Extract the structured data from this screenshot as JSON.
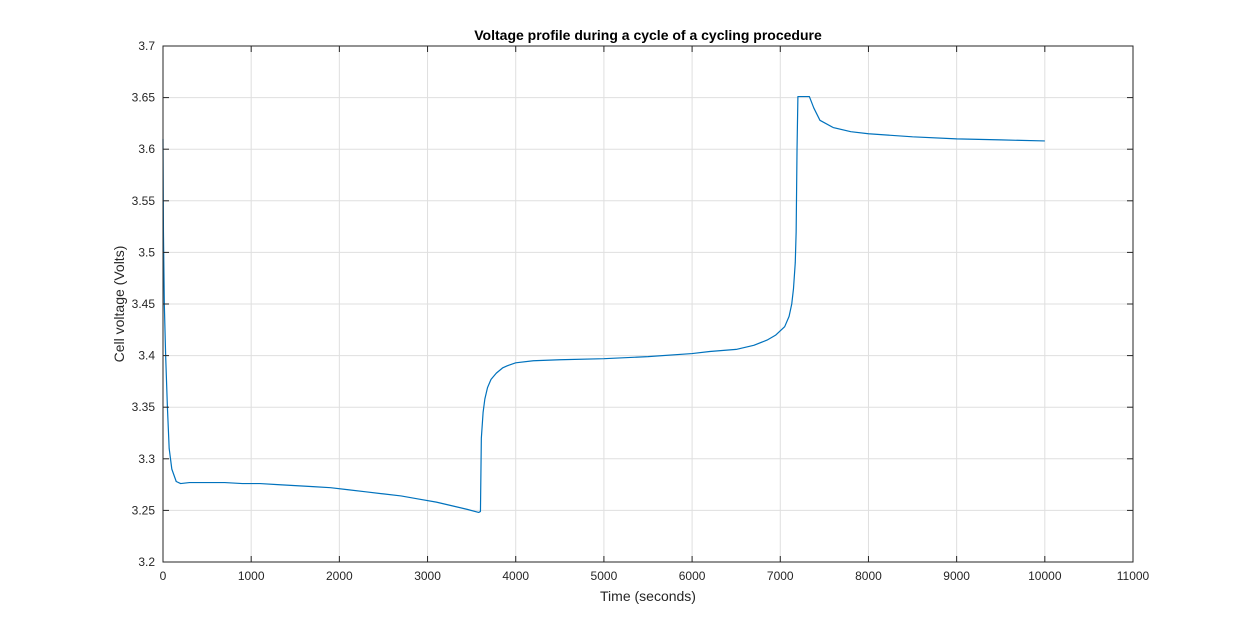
{
  "chart_data": {
    "type": "line",
    "title": "Voltage profile during a cycle of a cycling procedure",
    "xlabel": "Time (seconds)",
    "ylabel": "Cell voltage (Volts)",
    "xlim": [
      0,
      11000
    ],
    "ylim": [
      3.2,
      3.7
    ],
    "xticks": [
      0,
      1000,
      2000,
      3000,
      4000,
      5000,
      6000,
      7000,
      8000,
      9000,
      10000,
      11000
    ],
    "xtick_labels": [
      "0",
      "1000",
      "2000",
      "3000",
      "4000",
      "5000",
      "6000",
      "7000",
      "8000",
      "9000",
      "10000",
      "11000"
    ],
    "yticks": [
      3.2,
      3.25,
      3.3,
      3.35,
      3.4,
      3.45,
      3.5,
      3.55,
      3.6,
      3.65,
      3.7
    ],
    "ytick_labels": [
      "3.2",
      "3.25",
      "3.3",
      "3.35",
      "3.4",
      "3.45",
      "3.5",
      "3.55",
      "3.6",
      "3.65",
      "3.7"
    ],
    "grid": true,
    "colors": {
      "line": "#0072BD",
      "grid": "#dfdfdf",
      "axes": "#262626"
    },
    "series": [
      {
        "x": [
          0,
          5,
          15,
          30,
          50,
          70,
          100,
          150,
          200,
          300,
          500,
          700,
          900,
          1100,
          1300,
          1500,
          1700,
          1900,
          2100,
          2300,
          2500,
          2700,
          2900,
          3100,
          3300,
          3450,
          3580,
          3600,
          3610,
          3630,
          3650,
          3680,
          3720,
          3780,
          3850,
          3900,
          4000,
          4200,
          4500,
          5000,
          5500,
          6000,
          6200,
          6500,
          6700,
          6850,
          6950,
          7050,
          7100,
          7130,
          7150,
          7170,
          7180,
          7185,
          7190,
          7200,
          7300,
          7330,
          7380,
          7450,
          7600,
          7800,
          8000,
          8500,
          9000,
          9500,
          10000
        ],
        "y": [
          3.61,
          3.52,
          3.45,
          3.4,
          3.35,
          3.31,
          3.29,
          3.278,
          3.276,
          3.277,
          3.277,
          3.277,
          3.276,
          3.276,
          3.275,
          3.274,
          3.273,
          3.272,
          3.27,
          3.268,
          3.266,
          3.264,
          3.261,
          3.258,
          3.254,
          3.251,
          3.248,
          3.249,
          3.32,
          3.345,
          3.358,
          3.369,
          3.377,
          3.383,
          3.388,
          3.39,
          3.393,
          3.395,
          3.396,
          3.397,
          3.399,
          3.402,
          3.404,
          3.406,
          3.41,
          3.415,
          3.42,
          3.428,
          3.438,
          3.45,
          3.465,
          3.49,
          3.52,
          3.56,
          3.6,
          3.651,
          3.651,
          3.651,
          3.64,
          3.628,
          3.621,
          3.617,
          3.615,
          3.612,
          3.61,
          3.609,
          3.608
        ]
      }
    ]
  }
}
